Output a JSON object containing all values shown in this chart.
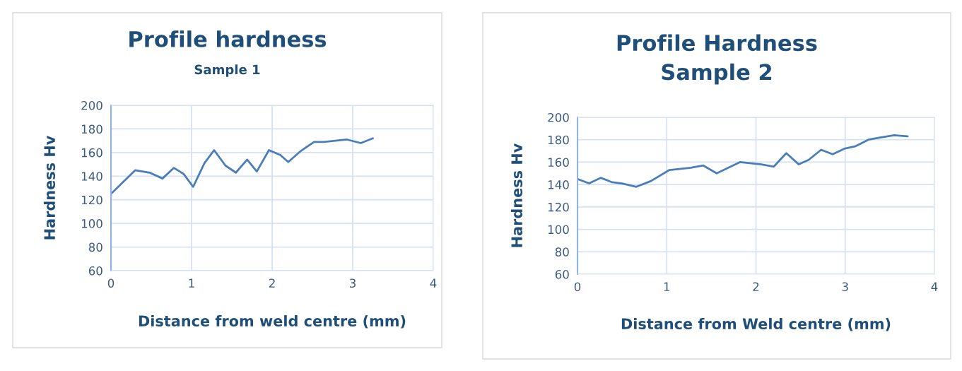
{
  "chart_data": [
    {
      "type": "line",
      "title": "Profile hardness",
      "subtitle": "Sample 1",
      "xlabel": "Distance from weld centre (mm)",
      "ylabel": "Hardness Hv",
      "x": [
        0,
        0.3,
        0.48,
        0.64,
        0.78,
        0.9,
        1.02,
        1.16,
        1.28,
        1.42,
        1.55,
        1.69,
        1.81,
        1.96,
        2.1,
        2.2,
        2.35,
        2.52,
        2.64,
        2.93,
        3.1,
        3.25
      ],
      "series": [
        {
          "color": "#4a7ebb",
          "values": [
            125,
            145,
            143,
            138,
            147,
            142,
            131,
            151,
            162,
            149,
            143,
            154,
            144,
            162,
            158,
            152,
            161,
            169,
            169,
            171,
            168,
            172
          ]
        }
      ],
      "xlim": [
        0,
        4
      ],
      "xticks": [
        0,
        1,
        2,
        3,
        4
      ],
      "ylim": [
        60,
        200
      ],
      "yticks": [
        60,
        80,
        100,
        120,
        140,
        160,
        180,
        200
      ],
      "grid": true,
      "marker": "none",
      "line_style": "solid"
    },
    {
      "type": "line",
      "title": "Profile Hardness\nSample 2",
      "xlabel": "Distance from Weld centre (mm)",
      "ylabel": "Hardness Hv",
      "x": [
        0,
        0.13,
        0.26,
        0.39,
        0.5,
        0.66,
        0.82,
        1.03,
        1.27,
        1.41,
        1.56,
        1.82,
        2.06,
        2.2,
        2.34,
        2.48,
        2.59,
        2.73,
        2.86,
        2.99,
        3.11,
        3.26,
        3.39,
        3.55,
        3.7
      ],
      "series": [
        {
          "color": "#4a7ebb",
          "values": [
            145,
            141,
            146,
            142,
            141,
            138,
            143,
            153,
            155,
            157,
            150,
            160,
            158,
            156,
            168,
            158,
            162,
            171,
            167,
            172,
            174,
            180,
            182,
            184,
            183
          ]
        }
      ],
      "xlim": [
        0,
        4
      ],
      "xticks": [
        0,
        1,
        2,
        3,
        4
      ],
      "ylim": [
        60,
        200
      ],
      "yticks": [
        60,
        80,
        100,
        120,
        140,
        160,
        180,
        200
      ],
      "grid": true,
      "marker": "none",
      "line_style": "solid"
    }
  ]
}
